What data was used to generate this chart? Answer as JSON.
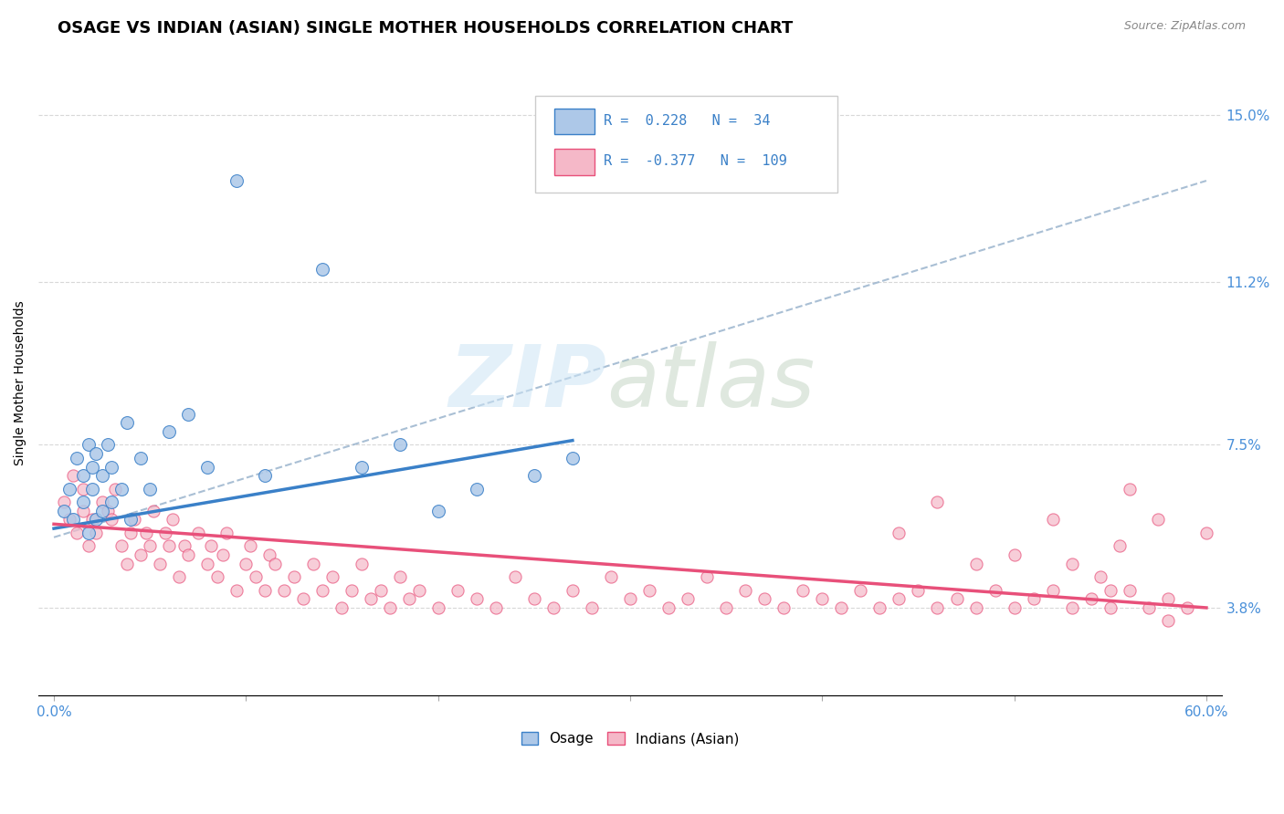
{
  "title": "OSAGE VS INDIAN (ASIAN) SINGLE MOTHER HOUSEHOLDS CORRELATION CHART",
  "source": "Source: ZipAtlas.com",
  "ylabel": "Single Mother Households",
  "xlim": [
    0.0,
    0.6
  ],
  "ylim": [
    0.018,
    0.16
  ],
  "ytick_positions": [
    0.038,
    0.075,
    0.112,
    0.15
  ],
  "ytick_labels": [
    "3.8%",
    "7.5%",
    "11.2%",
    "15.0%"
  ],
  "osage_color": "#adc8e8",
  "indian_color": "#f5b8c8",
  "osage_line_color": "#3a80c8",
  "indian_line_color": "#e8507a",
  "trend_line_color": "#a0b8d0",
  "osage_R": 0.228,
  "osage_N": 34,
  "indian_R": -0.377,
  "indian_N": 109,
  "legend_label_osage": "Osage",
  "legend_label_indian": "Indians (Asian)",
  "title_fontsize": 13,
  "label_fontsize": 10,
  "tick_fontsize": 11,
  "osage_x": [
    0.005,
    0.008,
    0.01,
    0.012,
    0.015,
    0.015,
    0.018,
    0.018,
    0.02,
    0.02,
    0.022,
    0.022,
    0.025,
    0.025,
    0.028,
    0.03,
    0.03,
    0.035,
    0.038,
    0.04,
    0.045,
    0.05,
    0.06,
    0.07,
    0.08,
    0.095,
    0.11,
    0.14,
    0.16,
    0.18,
    0.2,
    0.22,
    0.25,
    0.27
  ],
  "osage_y": [
    0.06,
    0.065,
    0.058,
    0.072,
    0.062,
    0.068,
    0.055,
    0.075,
    0.065,
    0.07,
    0.058,
    0.073,
    0.06,
    0.068,
    0.075,
    0.062,
    0.07,
    0.065,
    0.08,
    0.058,
    0.072,
    0.065,
    0.078,
    0.082,
    0.07,
    0.135,
    0.068,
    0.115,
    0.07,
    0.075,
    0.06,
    0.065,
    0.068,
    0.072
  ],
  "indian_x": [
    0.005,
    0.008,
    0.01,
    0.012,
    0.015,
    0.015,
    0.018,
    0.02,
    0.022,
    0.025,
    0.028,
    0.03,
    0.032,
    0.035,
    0.038,
    0.04,
    0.042,
    0.045,
    0.048,
    0.05,
    0.052,
    0.055,
    0.058,
    0.06,
    0.062,
    0.065,
    0.068,
    0.07,
    0.075,
    0.08,
    0.082,
    0.085,
    0.088,
    0.09,
    0.095,
    0.1,
    0.102,
    0.105,
    0.11,
    0.112,
    0.115,
    0.12,
    0.125,
    0.13,
    0.135,
    0.14,
    0.145,
    0.15,
    0.155,
    0.16,
    0.165,
    0.17,
    0.175,
    0.18,
    0.185,
    0.19,
    0.2,
    0.21,
    0.22,
    0.23,
    0.24,
    0.25,
    0.26,
    0.27,
    0.28,
    0.29,
    0.3,
    0.31,
    0.32,
    0.33,
    0.34,
    0.35,
    0.36,
    0.37,
    0.38,
    0.39,
    0.4,
    0.41,
    0.42,
    0.43,
    0.44,
    0.45,
    0.46,
    0.47,
    0.48,
    0.49,
    0.5,
    0.51,
    0.52,
    0.53,
    0.54,
    0.55,
    0.56,
    0.57,
    0.58,
    0.59,
    0.6,
    0.48,
    0.52,
    0.55,
    0.56,
    0.58,
    0.44,
    0.46,
    0.5,
    0.53,
    0.545,
    0.555,
    0.575
  ],
  "indian_y": [
    0.062,
    0.058,
    0.068,
    0.055,
    0.06,
    0.065,
    0.052,
    0.058,
    0.055,
    0.062,
    0.06,
    0.058,
    0.065,
    0.052,
    0.048,
    0.055,
    0.058,
    0.05,
    0.055,
    0.052,
    0.06,
    0.048,
    0.055,
    0.052,
    0.058,
    0.045,
    0.052,
    0.05,
    0.055,
    0.048,
    0.052,
    0.045,
    0.05,
    0.055,
    0.042,
    0.048,
    0.052,
    0.045,
    0.042,
    0.05,
    0.048,
    0.042,
    0.045,
    0.04,
    0.048,
    0.042,
    0.045,
    0.038,
    0.042,
    0.048,
    0.04,
    0.042,
    0.038,
    0.045,
    0.04,
    0.042,
    0.038,
    0.042,
    0.04,
    0.038,
    0.045,
    0.04,
    0.038,
    0.042,
    0.038,
    0.045,
    0.04,
    0.042,
    0.038,
    0.04,
    0.045,
    0.038,
    0.042,
    0.04,
    0.038,
    0.042,
    0.04,
    0.038,
    0.042,
    0.038,
    0.04,
    0.042,
    0.038,
    0.04,
    0.038,
    0.042,
    0.038,
    0.04,
    0.042,
    0.038,
    0.04,
    0.038,
    0.042,
    0.038,
    0.04,
    0.038,
    0.055,
    0.048,
    0.058,
    0.042,
    0.065,
    0.035,
    0.055,
    0.062,
    0.05,
    0.048,
    0.045,
    0.052,
    0.058
  ],
  "osage_trend_x": [
    0.0,
    0.27
  ],
  "osage_trend_y": [
    0.056,
    0.076
  ],
  "indian_trend_x": [
    0.0,
    0.6
  ],
  "indian_trend_y": [
    0.057,
    0.038
  ],
  "overall_trend_x": [
    0.0,
    0.6
  ],
  "overall_trend_y": [
    0.054,
    0.135
  ]
}
